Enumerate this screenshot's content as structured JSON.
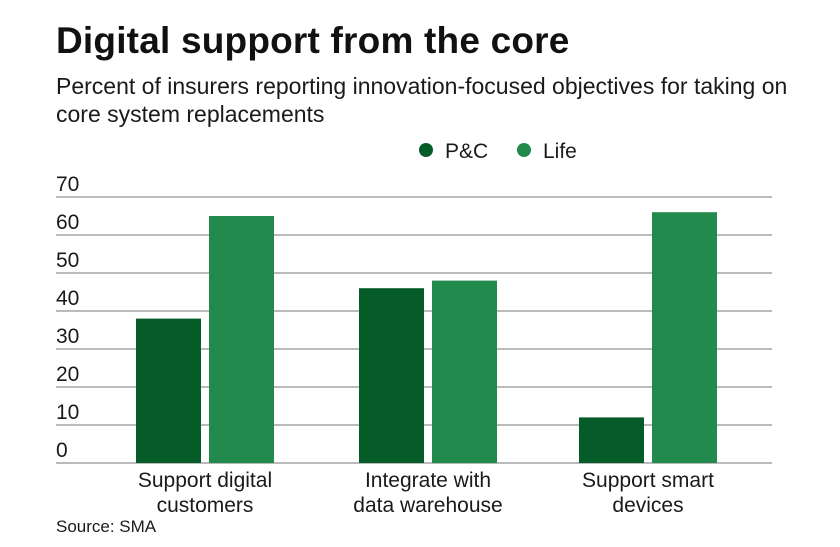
{
  "chart_data": {
    "type": "bar",
    "title": "Digital support from the core",
    "subtitle": "Percent of insurers reporting innovation-focused objectives for taking on core system replacements",
    "categories": [
      [
        "Support digital",
        "customers"
      ],
      [
        "Integrate with",
        "data warehouse"
      ],
      [
        "Support smart",
        "devices"
      ]
    ],
    "series": [
      {
        "name": "P&C",
        "color": "#065c29",
        "values": [
          38,
          46,
          12
        ]
      },
      {
        "name": "Life",
        "color": "#218a4c",
        "values": [
          65,
          48,
          66
        ]
      }
    ],
    "ylim": [
      0,
      70
    ],
    "yticks": [
      "0",
      "10",
      "20",
      "30",
      "40",
      "50",
      "60",
      "70"
    ],
    "grid": true,
    "legend_position": "top-right",
    "source": "Source: SMA"
  }
}
